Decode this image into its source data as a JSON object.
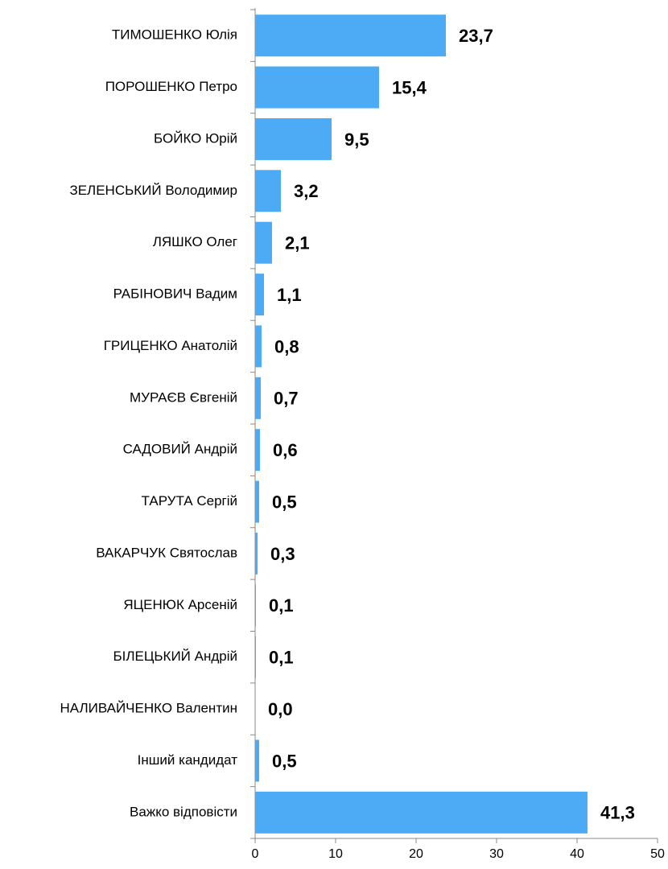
{
  "chart_data": {
    "type": "bar",
    "orientation": "horizontal",
    "categories": [
      "ТИМОШЕНКО Юлія",
      "ПОРОШЕНКО Петро",
      "БОЙКО Юрій",
      "ЗЕЛЕНСЬКИЙ Володимир",
      "ЛЯШКО Олег",
      "РАБІНОВИЧ Вадим",
      "ГРИЦЕНКО Анатолій",
      "МУРАЄВ Євгеній",
      "САДОВИЙ Андрій",
      "ТАРУТА Сергій",
      "ВАКАРЧУК Святослав",
      "ЯЦЕНЮК Арсеній",
      "БІЛЕЦЬКИЙ Андрій",
      "НАЛИВАЙЧЕНКО Валентин",
      "Інший кандидат",
      "Важко відповісти"
    ],
    "values": [
      23.7,
      15.4,
      9.5,
      3.2,
      2.1,
      1.1,
      0.8,
      0.7,
      0.6,
      0.5,
      0.3,
      0.1,
      0.1,
      0.0,
      0.5,
      41.3
    ],
    "value_labels": [
      "23,7",
      "15,4",
      "9,5",
      "3,2",
      "2,1",
      "1,1",
      "0,8",
      "0,7",
      "0,6",
      "0,5",
      "0,3",
      "0,1",
      "0,1",
      "0,0",
      "0,5",
      "41,3"
    ],
    "color": "#4dabf5",
    "xlim": [
      0,
      50
    ],
    "xticks": [
      0,
      10,
      20,
      30,
      40,
      50
    ]
  }
}
